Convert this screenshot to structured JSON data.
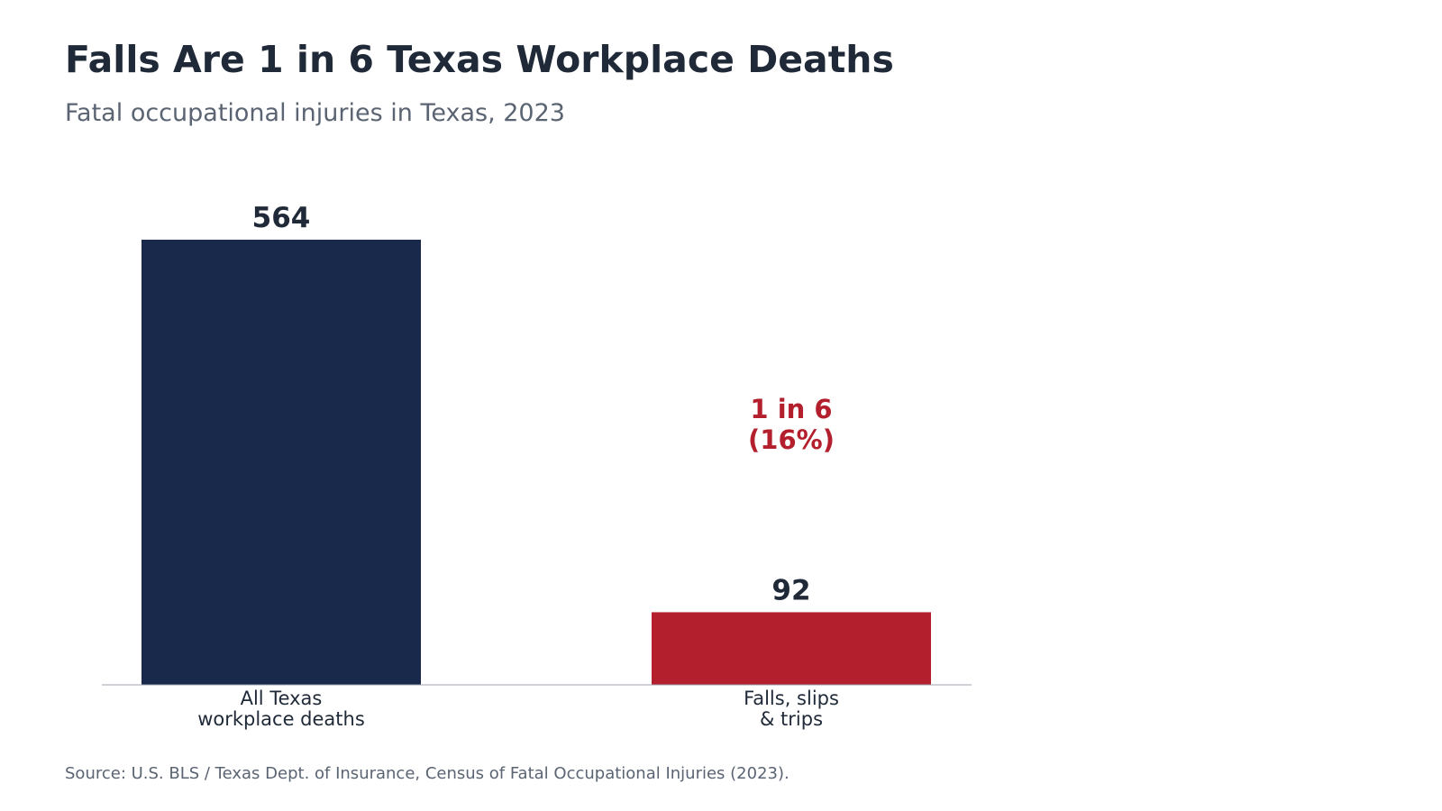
{
  "title": "Falls Are 1 in 6 Texas Workplace Deaths",
  "subtitle": "Fatal occupational injuries in Texas, 2023",
  "source": "Source: U.S. BLS / Texas Dept. of Insurance, Census of Fatal Occupational Injuries (2023).",
  "colors": {
    "title": "#1f2937",
    "muted": "#5b6472",
    "all_deaths_bar": "#18294b",
    "falls_bar": "#b31f2c",
    "annotation": "#b31f2c",
    "baseline": "#9ca3af"
  },
  "chart_data": {
    "type": "bar",
    "categories": [
      [
        "All Texas",
        "workplace deaths"
      ],
      [
        "Falls, slips",
        "& trips"
      ]
    ],
    "values": [
      564,
      92
    ],
    "value_labels": [
      "564",
      "92"
    ],
    "annotation": [
      "1 in 6",
      "(16%)"
    ],
    "ylim": [
      0,
      564
    ],
    "grid": false,
    "legend": "none"
  }
}
